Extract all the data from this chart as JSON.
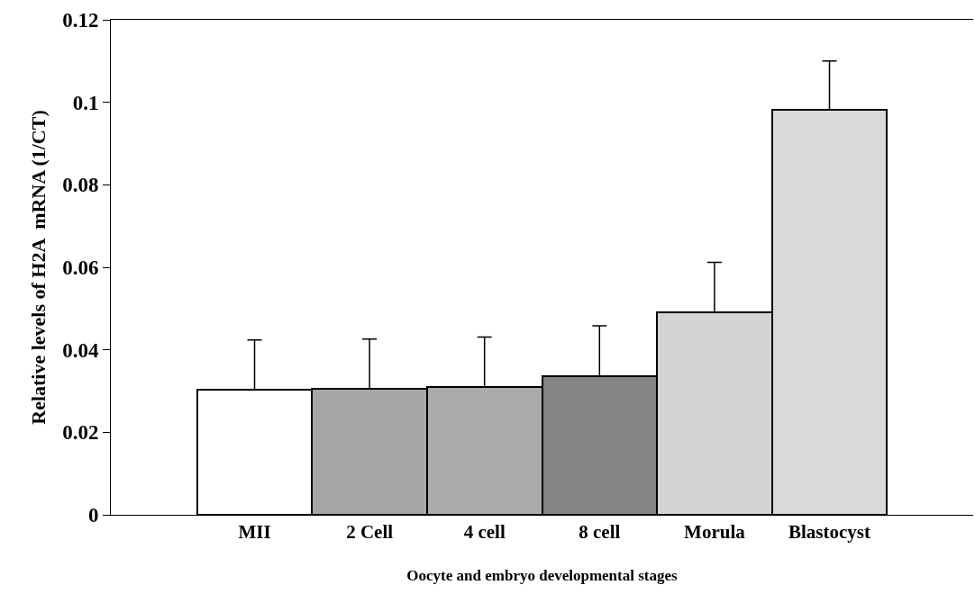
{
  "chart_data": {
    "type": "bar",
    "xlabel": "Oocyte and embryo developmental stages",
    "ylabel": "Relative levels of H2A  mRNA (1/CT)",
    "categories": [
      "MII",
      "2 Cell",
      "4 cell",
      "8 cell",
      "Morula",
      "Blastocyst"
    ],
    "values": [
      0.0303,
      0.0306,
      0.031,
      0.0336,
      0.0491,
      0.0981
    ],
    "errors": [
      [
        0.0303,
        0.0424
      ],
      [
        0.0306,
        0.0426
      ],
      [
        0.031,
        0.0431
      ],
      [
        0.0336,
        0.0458
      ],
      [
        0.0491,
        0.0612
      ],
      [
        0.0981,
        0.11
      ]
    ],
    "colors": [
      "#ffffff",
      "#a6a6a6",
      "#ababab",
      "#858585",
      "#d4d4d4",
      "#d9d9d9"
    ],
    "ylim": [
      0,
      0.12
    ],
    "yticks": [
      0,
      0.02,
      0.04,
      0.06,
      0.08,
      0.1,
      0.12
    ]
  }
}
